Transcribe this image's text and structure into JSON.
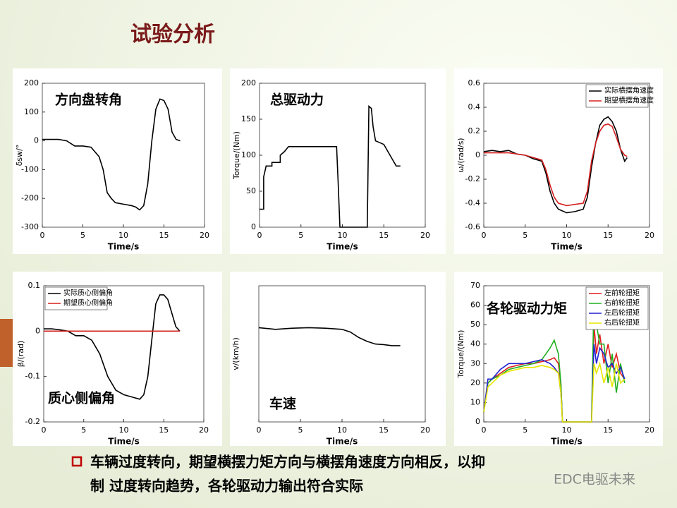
{
  "title": "试验分析",
  "bullet": [
    "车辆过度转向，期望横摆力矩方向与横摆角速度方向相反，以抑",
    "制 过度转向趋势，各轮驱动力输出符合实际"
  ],
  "watermark": "EDC电驱未来",
  "chart_data": [
    {
      "type": "line",
      "annotation": "方向盘转角",
      "xlabel": "Time/s",
      "ylabel": "δsw/°",
      "xlim": [
        0,
        20
      ],
      "xticks": [
        0,
        5,
        10,
        15,
        20
      ],
      "ylim": [
        -300,
        200
      ],
      "yticks": [
        -300,
        -200,
        -100,
        0,
        100,
        200
      ],
      "x": [
        0,
        1,
        2,
        3,
        4,
        5,
        6,
        7,
        7.5,
        8,
        8.5,
        9,
        10,
        11,
        11.5,
        12,
        12.5,
        13,
        13.5,
        14,
        14.5,
        15,
        15.5,
        16,
        16.5,
        17
      ],
      "series": [
        {
          "color": "#000000",
          "values": [
            5,
            5,
            5,
            0,
            -18,
            -18,
            -22,
            -55,
            -100,
            -180,
            -200,
            -215,
            -220,
            -225,
            -230,
            -240,
            -225,
            -150,
            0,
            110,
            145,
            140,
            110,
            30,
            5,
            0
          ]
        }
      ]
    },
    {
      "type": "line",
      "annotation": "总驱动力",
      "xlabel": "Time/s",
      "ylabel": "Torque/(Nm)",
      "xlim": [
        0,
        20
      ],
      "xticks": [
        0,
        5,
        10,
        15,
        20
      ],
      "ylim": [
        0,
        200
      ],
      "yticks": [
        0,
        50,
        100,
        150,
        200
      ],
      "x": [
        0,
        0.5,
        0.5,
        0.8,
        1.5,
        1.5,
        2.5,
        2.5,
        3,
        3.5,
        9.3,
        9.5,
        9.7,
        13,
        13.2,
        13.5,
        13.7,
        14,
        15,
        15.5,
        16,
        16.5,
        17
      ],
      "series": [
        {
          "color": "#000000",
          "values": [
            25,
            25,
            70,
            85,
            85,
            90,
            90,
            100,
            105,
            112,
            112,
            60,
            0,
            0,
            168,
            165,
            140,
            120,
            115,
            105,
            95,
            85,
            85
          ]
        }
      ]
    },
    {
      "type": "line",
      "xlabel": "Time/s",
      "ylabel": "ω/(rad/s)",
      "legend": "upper right",
      "xlim": [
        0,
        20
      ],
      "xticks": [
        0,
        5,
        10,
        15,
        20
      ],
      "ylim": [
        -0.6,
        0.6
      ],
      "yticks": [
        -0.6,
        -0.4,
        -0.2,
        0,
        0.2,
        0.4,
        0.6
      ],
      "x": [
        0,
        1,
        2,
        3,
        4,
        5,
        6,
        7,
        7.5,
        8,
        8.5,
        9,
        10,
        11,
        12,
        12.5,
        13,
        13.5,
        14,
        14.5,
        15,
        15.5,
        16,
        16.5,
        17,
        17.3
      ],
      "series": [
        {
          "name": "实际横摆角速度",
          "color": "#000000",
          "values": [
            0.03,
            0.04,
            0.03,
            0.04,
            0.01,
            0,
            -0.03,
            -0.05,
            -0.15,
            -0.3,
            -0.4,
            -0.45,
            -0.48,
            -0.47,
            -0.45,
            -0.35,
            -0.1,
            0.1,
            0.25,
            0.3,
            0.32,
            0.28,
            0.2,
            0.05,
            -0.05,
            -0.02
          ]
        },
        {
          "name": "期望横摆角速度",
          "color": "#d62020",
          "values": [
            0.02,
            0.02,
            0.02,
            0.02,
            0.01,
            0,
            -0.02,
            -0.04,
            -0.12,
            -0.25,
            -0.35,
            -0.4,
            -0.42,
            -0.41,
            -0.4,
            -0.3,
            -0.05,
            0.1,
            0.2,
            0.25,
            0.26,
            0.24,
            0.15,
            0.05,
            0,
            -0.01
          ]
        }
      ]
    },
    {
      "type": "line",
      "annotation": "质心侧偏角",
      "xlabel": "Time/s",
      "ylabel": "β/(rad)",
      "legend": "upper left",
      "xlim": [
        0,
        20
      ],
      "xticks": [
        0,
        5,
        10,
        15,
        20
      ],
      "ylim": [
        -0.2,
        0.1
      ],
      "yticks": [
        -0.2,
        -0.1,
        0,
        0.1
      ],
      "x": [
        0,
        1,
        2,
        3,
        4,
        5,
        6,
        7,
        8,
        9,
        10,
        11,
        12,
        12.5,
        13,
        13.5,
        14,
        14.5,
        15,
        15.5,
        16,
        16.5,
        17
      ],
      "series": [
        {
          "name": "实际质心侧偏角",
          "color": "#000000",
          "values": [
            0.005,
            0.005,
            0.003,
            0,
            -0.01,
            -0.01,
            -0.02,
            -0.05,
            -0.1,
            -0.13,
            -0.14,
            -0.145,
            -0.15,
            -0.14,
            -0.1,
            -0.02,
            0.06,
            0.08,
            0.08,
            0.07,
            0.04,
            0.01,
            0
          ]
        },
        {
          "name": "期望质心侧偏角",
          "color": "#d62020",
          "values": [
            0,
            0,
            0,
            0,
            0,
            0,
            0,
            0,
            0,
            0,
            0,
            0,
            0,
            0,
            0,
            0,
            0,
            0,
            0,
            0,
            0,
            0,
            0
          ]
        }
      ]
    },
    {
      "type": "line",
      "annotation": "车速",
      "xlabel": "Time/s",
      "ylabel": "v/(km/h)",
      "xlim": [
        0,
        20
      ],
      "xticks": [
        0,
        5,
        10,
        15,
        20
      ],
      "ylim": [
        0,
        25
      ],
      "x": [
        0,
        2,
        4,
        6,
        8,
        10,
        11,
        12,
        13,
        14,
        15,
        16,
        17
      ],
      "series": [
        {
          "color": "#000000",
          "values": [
            17.3,
            17,
            17.2,
            17.3,
            17.2,
            17,
            16.5,
            15.5,
            14.8,
            14.3,
            14.2,
            14,
            14
          ]
        }
      ]
    },
    {
      "type": "line",
      "annotation": "各轮驱动力矩",
      "xlabel": "Time/s",
      "ylabel": "Torque/(Nm)",
      "legend": "upper right",
      "xlim": [
        0,
        20
      ],
      "xticks": [
        0,
        5,
        10,
        15,
        20
      ],
      "ylim": [
        0,
        70
      ],
      "yticks": [
        0,
        10,
        20,
        30,
        40,
        50,
        60,
        70
      ],
      "x": [
        0,
        0.5,
        1,
        2,
        3,
        4,
        5,
        6,
        7,
        8,
        8.5,
        9,
        9.3,
        9.5,
        13,
        13.3,
        13.6,
        14,
        14.5,
        15,
        15.5,
        16,
        16.5,
        17
      ],
      "series": [
        {
          "name": "左前轮扭矩",
          "color": "#e02020",
          "values": [
            5,
            20,
            22,
            25,
            28,
            29,
            30,
            30,
            31,
            32,
            33,
            30,
            20,
            0,
            0,
            50,
            35,
            45,
            30,
            40,
            28,
            35,
            25,
            22
          ]
        },
        {
          "name": "右前轮扭矩",
          "color": "#20b020",
          "values": [
            5,
            20,
            22,
            24,
            27,
            28,
            29,
            30,
            32,
            38,
            42,
            35,
            20,
            0,
            0,
            65,
            50,
            40,
            40,
            20,
            35,
            15,
            30,
            20
          ]
        },
        {
          "name": "左后轮扭矩",
          "color": "#2020d0",
          "values": [
            5,
            22,
            22,
            27,
            30,
            30,
            30,
            31,
            32,
            30,
            28,
            25,
            15,
            0,
            0,
            40,
            30,
            38,
            35,
            28,
            30,
            25,
            28,
            22
          ]
        },
        {
          "name": "右后轮扭矩",
          "color": "#e6e600",
          "values": [
            5,
            18,
            20,
            24,
            26,
            27,
            28,
            28,
            29,
            28,
            27,
            25,
            15,
            0,
            0,
            30,
            25,
            30,
            20,
            28,
            18,
            30,
            20,
            22
          ]
        }
      ]
    }
  ]
}
